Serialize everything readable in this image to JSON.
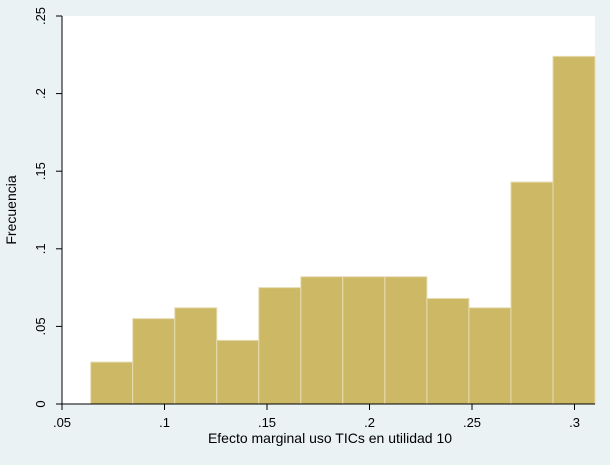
{
  "chart_data": {
    "type": "bar",
    "subtype": "histogram",
    "xlabel": "Efecto marginal uso TICs en utilidad 10",
    "ylabel": "Frecuencia",
    "xlim": [
      0.05,
      0.31
    ],
    "ylim": [
      0,
      0.25
    ],
    "xticks": [
      ".05",
      ".1",
      ".15",
      ".2",
      ".25",
      ".3"
    ],
    "yticks": [
      "0",
      ".05",
      ".1",
      ".15",
      ".2",
      ".25"
    ],
    "bins": [
      {
        "x0": 0.064,
        "x1": 0.0845,
        "value": 0.027
      },
      {
        "x0": 0.0845,
        "x1": 0.105,
        "value": 0.055
      },
      {
        "x0": 0.105,
        "x1": 0.1255,
        "value": 0.062
      },
      {
        "x0": 0.1255,
        "x1": 0.146,
        "value": 0.041
      },
      {
        "x0": 0.146,
        "x1": 0.1665,
        "value": 0.075
      },
      {
        "x0": 0.1665,
        "x1": 0.187,
        "value": 0.082
      },
      {
        "x0": 0.187,
        "x1": 0.2075,
        "value": 0.082
      },
      {
        "x0": 0.2075,
        "x1": 0.228,
        "value": 0.082
      },
      {
        "x0": 0.228,
        "x1": 0.2485,
        "value": 0.068
      },
      {
        "x0": 0.2485,
        "x1": 0.269,
        "value": 0.062
      },
      {
        "x0": 0.269,
        "x1": 0.2895,
        "value": 0.143
      },
      {
        "x0": 0.2895,
        "x1": 0.31,
        "value": 0.224
      }
    ],
    "bar_color": "#cdb865",
    "bar_edge_color": "#e6dcb2",
    "background_color": "#eaf2f3",
    "plot_background_color": "#ffffff",
    "grid": false
  }
}
